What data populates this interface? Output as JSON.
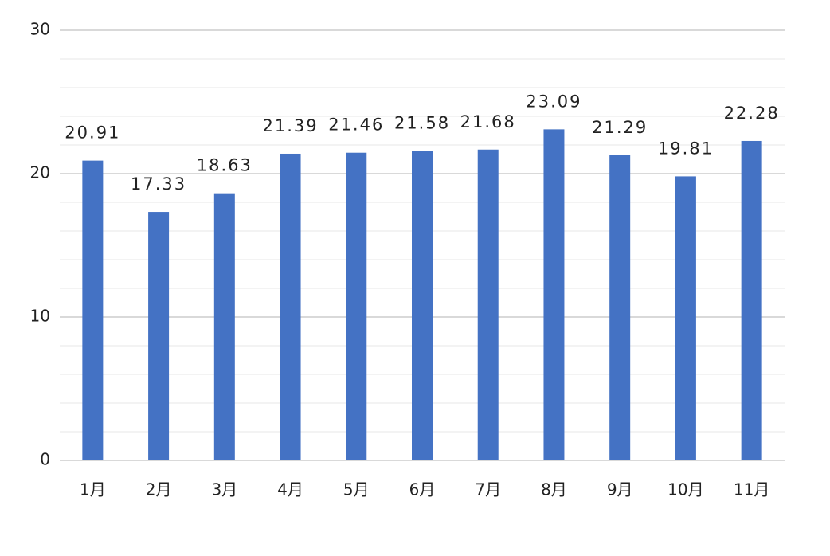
{
  "chart_data": {
    "type": "bar",
    "categories": [
      "1月",
      "2月",
      "3月",
      "4月",
      "5月",
      "6月",
      "7月",
      "8月",
      "9月",
      "10月",
      "11月"
    ],
    "values": [
      20.91,
      17.33,
      18.63,
      21.39,
      21.46,
      21.58,
      21.68,
      23.09,
      21.29,
      19.81,
      22.28
    ],
    "color": "#4472c4",
    "ylim": [
      0,
      30
    ],
    "yticks": [
      0,
      10,
      20,
      30
    ],
    "minor_yticks": [
      2,
      4,
      6,
      8,
      12,
      14,
      16,
      18,
      22,
      24,
      26,
      28
    ],
    "grid": true
  }
}
